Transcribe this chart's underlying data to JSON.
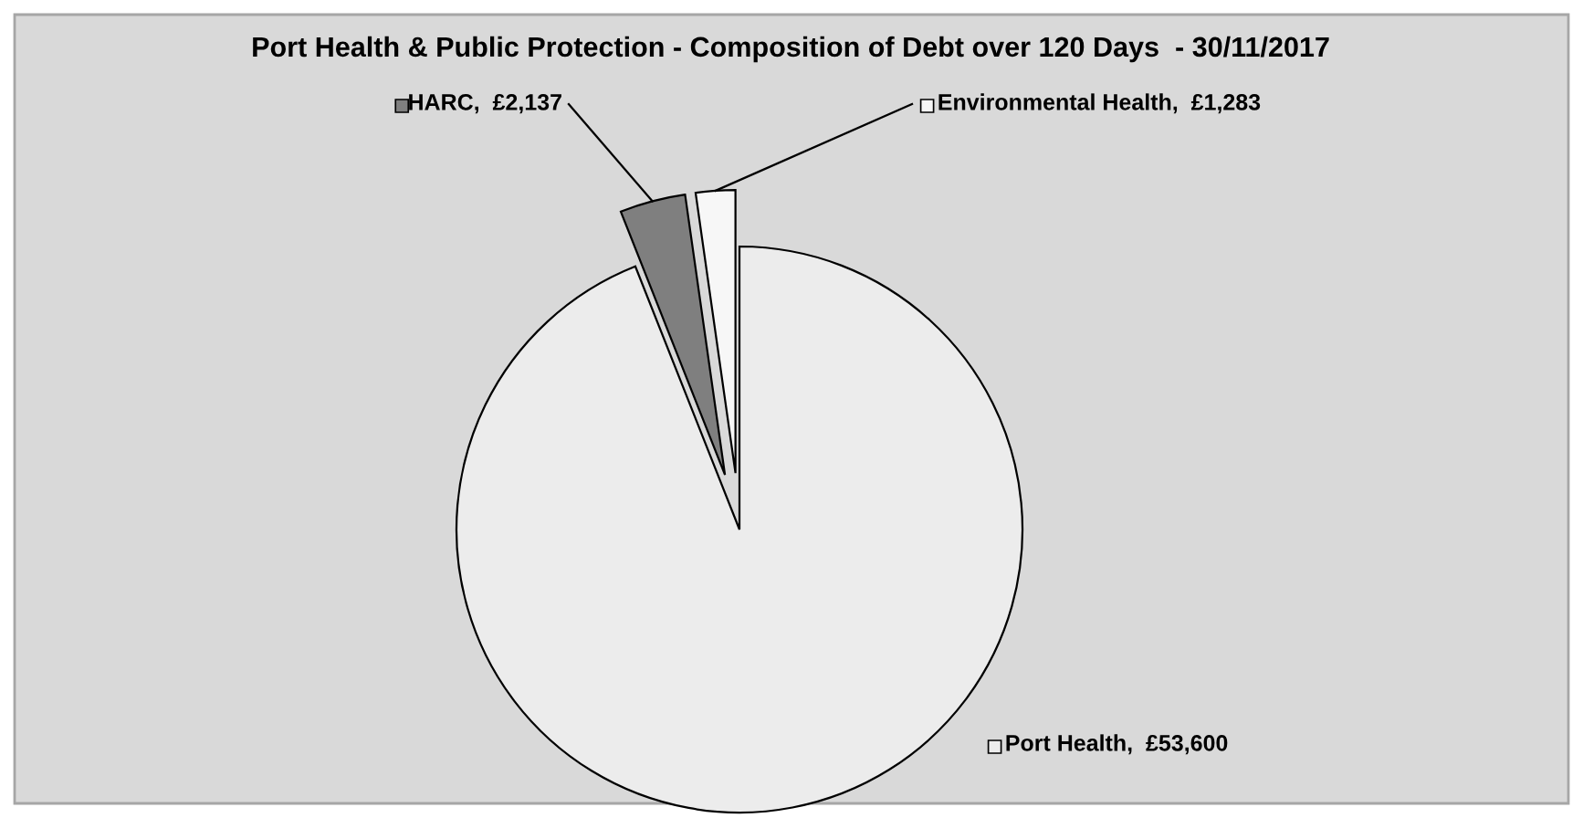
{
  "chart_data": {
    "type": "pie",
    "title": "Port Health & Public Protection - Composition of Debt over 120 Days  - 30/11/2017",
    "categories": [
      "Port Health",
      "HARC",
      "Environmental Health"
    ],
    "values": [
      53600,
      2137,
      1283
    ],
    "value_labels": [
      "£53,600",
      "£2,137",
      "£1,283"
    ],
    "colors": [
      "#ececec",
      "#7f7f7f",
      "#f7f7f7"
    ],
    "legend": "top right"
  }
}
